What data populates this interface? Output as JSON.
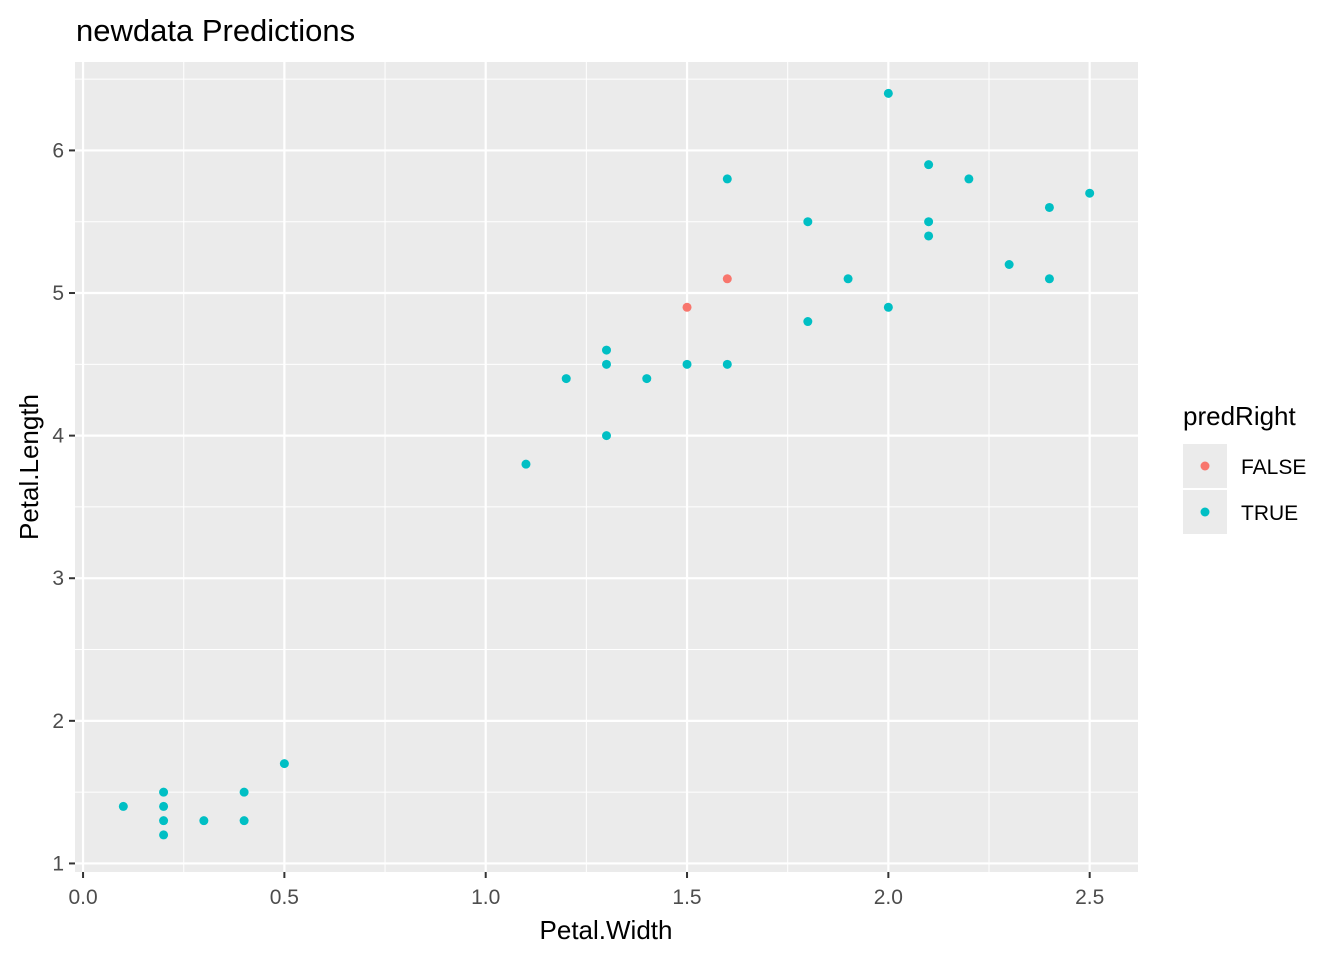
{
  "chart_data": {
    "type": "scatter",
    "title": "newdata Predictions",
    "xlabel": "Petal.Width",
    "ylabel": "Petal.Length",
    "xlim": [
      -0.02,
      2.62
    ],
    "ylim": [
      0.94,
      6.62
    ],
    "x_ticks": [
      0.0,
      0.5,
      1.0,
      1.5,
      2.0,
      2.5
    ],
    "x_tick_labels": [
      "0.0",
      "0.5",
      "1.0",
      "1.5",
      "2.0",
      "2.5"
    ],
    "y_ticks": [
      1,
      2,
      3,
      4,
      5,
      6
    ],
    "y_tick_labels": [
      "1",
      "2",
      "3",
      "4",
      "5",
      "6"
    ],
    "grid": true,
    "background": "#EBEBEB",
    "legend": {
      "title": "predRight",
      "position": "right",
      "entries": [
        {
          "label": "FALSE",
          "color": "#F8766D"
        },
        {
          "label": "TRUE",
          "color": "#00BFC4"
        }
      ]
    },
    "series": [
      {
        "name": "FALSE",
        "color": "#F8766D",
        "points": [
          {
            "x": 1.5,
            "y": 4.9
          },
          {
            "x": 1.6,
            "y": 5.1
          }
        ]
      },
      {
        "name": "TRUE",
        "color": "#00BFC4",
        "points": [
          {
            "x": 0.1,
            "y": 1.4
          },
          {
            "x": 0.2,
            "y": 1.5
          },
          {
            "x": 0.2,
            "y": 1.4
          },
          {
            "x": 0.2,
            "y": 1.3
          },
          {
            "x": 0.2,
            "y": 1.2
          },
          {
            "x": 0.3,
            "y": 1.3
          },
          {
            "x": 0.4,
            "y": 1.5
          },
          {
            "x": 0.4,
            "y": 1.3
          },
          {
            "x": 0.5,
            "y": 1.7
          },
          {
            "x": 1.1,
            "y": 3.8
          },
          {
            "x": 1.2,
            "y": 4.4
          },
          {
            "x": 1.3,
            "y": 4.6
          },
          {
            "x": 1.3,
            "y": 4.5
          },
          {
            "x": 1.3,
            "y": 4.0
          },
          {
            "x": 1.4,
            "y": 4.4
          },
          {
            "x": 1.5,
            "y": 4.5
          },
          {
            "x": 1.6,
            "y": 5.8
          },
          {
            "x": 1.6,
            "y": 4.5
          },
          {
            "x": 1.8,
            "y": 5.5
          },
          {
            "x": 1.8,
            "y": 4.8
          },
          {
            "x": 1.9,
            "y": 5.1
          },
          {
            "x": 2.0,
            "y": 6.4
          },
          {
            "x": 2.0,
            "y": 4.9
          },
          {
            "x": 2.1,
            "y": 5.9
          },
          {
            "x": 2.1,
            "y": 5.5
          },
          {
            "x": 2.1,
            "y": 5.4
          },
          {
            "x": 2.2,
            "y": 5.8
          },
          {
            "x": 2.3,
            "y": 5.2
          },
          {
            "x": 2.4,
            "y": 5.6
          },
          {
            "x": 2.4,
            "y": 5.1
          },
          {
            "x": 2.5,
            "y": 5.7
          }
        ]
      }
    ]
  }
}
